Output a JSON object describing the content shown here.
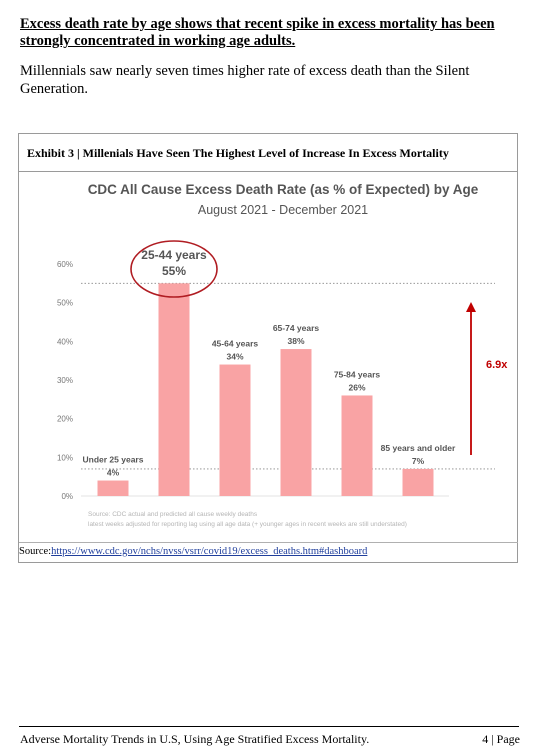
{
  "heading": "Excess death rate by age shows that recent spike in excess mortality has been strongly concentrated in working age adults.",
  "paragraph": "Millennials saw nearly seven times higher rate of excess death than the Silent Generation.",
  "exhibit_title": "Exhibit 3 | Millenials Have Seen The Highest Level of Increase In Excess Mortality",
  "source": {
    "label": "Source:",
    "url": "https://www.cdc.gov/nchs/nvss/vsrr/covid19/excess_deaths.htm#dashboard"
  },
  "footer": {
    "left": "Adverse Mortality Trends in U.S, Using Age Stratified Excess Mortality.",
    "right": "4 | Page"
  },
  "colors": {
    "bar": "#f9a3a4",
    "highlight": "#b01c22",
    "arrow": "#c00000"
  },
  "chart_data": {
    "type": "bar",
    "title": "CDC All Cause Excess Death Rate (as % of Expected) by Age",
    "subtitle": "August 2021 - December 2021",
    "categories": [
      "Under 25 years",
      "25-44 years",
      "45-64 years",
      "65-74 years",
      "75-84 years",
      "85 years and older"
    ],
    "values": [
      4,
      55,
      34,
      38,
      26,
      7
    ],
    "value_labels": [
      "4%",
      "55%",
      "34%",
      "38%",
      "26%",
      "7%"
    ],
    "yticks": [
      "0%",
      "10%",
      "20%",
      "30%",
      "40%",
      "50%",
      "60%"
    ],
    "ylim": [
      0,
      60
    ],
    "reference_lines": [
      55,
      7
    ],
    "annotation": "6.9x",
    "highlighted_category": "25-44 years",
    "notes": [
      "Source: CDC actual and predicted all cause weekly deaths",
      "latest weeks adjusted for reporting lag using all age data (+ younger ages in recent weeks are still understated)"
    ]
  }
}
